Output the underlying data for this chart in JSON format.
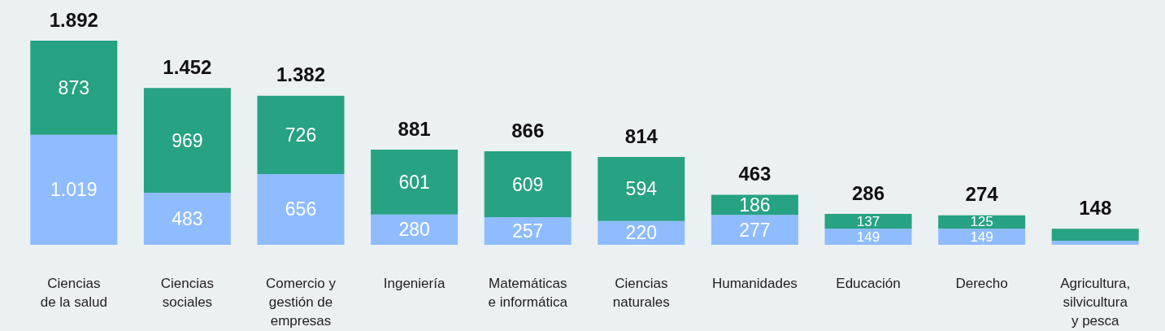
{
  "chart_data": {
    "type": "bar",
    "stacked": true,
    "categories": [
      "Ciencias\nde la salud",
      "Ciencias\nsociales",
      "Comercio y\ngestión de\nempresas",
      "Ingeniería",
      "Matemáticas\ne informática",
      "Ciencias\nnaturales",
      "Humanidades",
      "Educación",
      "Derecho",
      "Agricultura,\nsilvicultura\ny pesca"
    ],
    "series": [
      {
        "color": "#8fbcff",
        "values": [
          1019,
          483,
          656,
          280,
          257,
          220,
          277,
          149,
          149,
          37
        ],
        "value_labels": [
          "1.019",
          "483",
          "656",
          "280",
          "257",
          "220",
          "277",
          "149",
          "149",
          null
        ]
      },
      {
        "color": "#27a283",
        "values": [
          873,
          969,
          726,
          601,
          609,
          594,
          186,
          137,
          125,
          111
        ],
        "value_labels": [
          "873",
          "969",
          "726",
          "601",
          "609",
          "594",
          "186",
          "137",
          "125",
          null
        ]
      }
    ],
    "totals": [
      "1.892",
      "1.452",
      "1.382",
      "881",
      "866",
      "814",
      "463",
      "286",
      "274",
      "148"
    ]
  }
}
